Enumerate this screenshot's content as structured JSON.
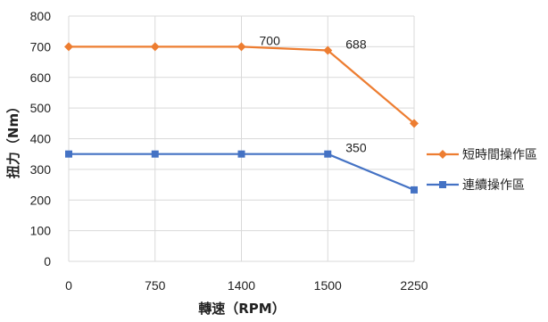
{
  "chart_data": {
    "type": "line",
    "title": "",
    "xlabel": "轉速（RPM）",
    "ylabel": "扭力（Nm）",
    "categories": [
      "0",
      "750",
      "1400",
      "1500",
      "2250"
    ],
    "ylim": [
      0,
      800
    ],
    "yticks": [
      "0",
      "100",
      "200",
      "300",
      "400",
      "500",
      "600",
      "700",
      "800"
    ],
    "grid": true,
    "legend_position": "right",
    "series": [
      {
        "name": "短時間操作區",
        "color": "#ED7D31",
        "marker": "diamond",
        "values": [
          700,
          700,
          700,
          688,
          450
        ]
      },
      {
        "name": "連續操作區",
        "color": "#4472C4",
        "marker": "square",
        "values": [
          350,
          350,
          350,
          350,
          233
        ]
      }
    ],
    "annotations": [
      {
        "series": 0,
        "index": 2,
        "text": "700"
      },
      {
        "series": 0,
        "index": 3,
        "text": "688"
      },
      {
        "series": 1,
        "index": 3,
        "text": "350"
      }
    ]
  }
}
